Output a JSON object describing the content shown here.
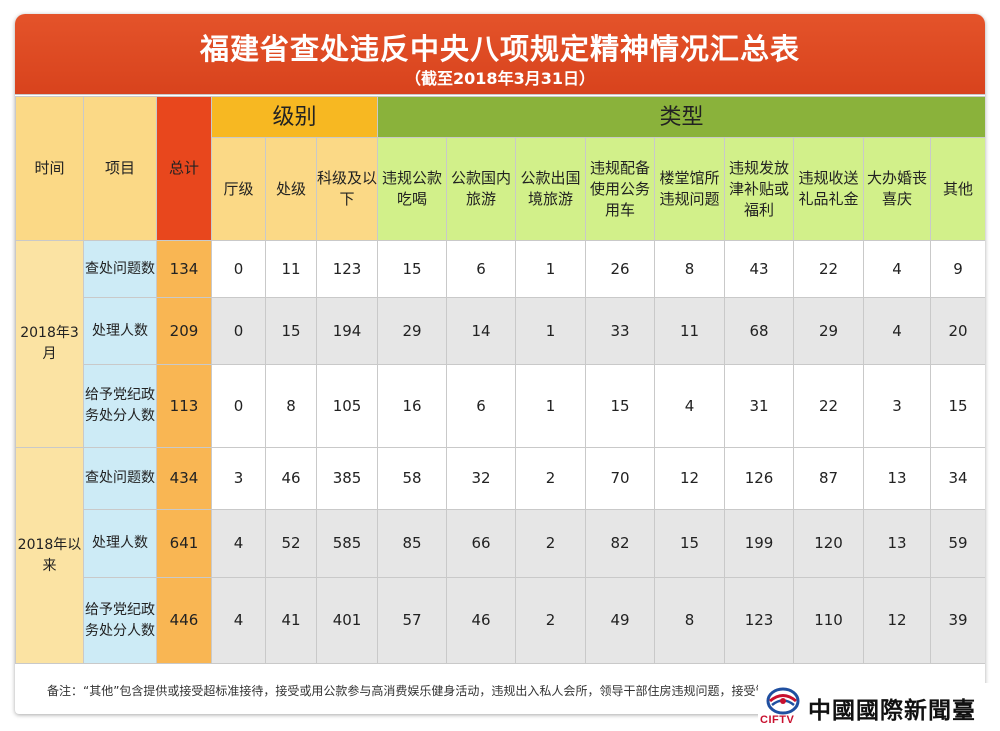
{
  "title": "福建省查处违反中央八项规定精神情况汇总表",
  "subtitle": "（截至2018年3月31日）",
  "headers": {
    "time": "时间",
    "project": "项目",
    "total": "总计",
    "level_group": "级别",
    "type_group": "类型",
    "levels": [
      "厅级",
      "处级",
      "科级及以下"
    ],
    "types": [
      "违规公款吃喝",
      "公款国内旅游",
      "公款出国境旅游",
      "违规配备使用公务用车",
      "楼堂馆所违规问题",
      "违规发放津补贴或福利",
      "违规收送礼品礼金",
      "大办婚丧喜庆",
      "其他"
    ]
  },
  "groups": [
    {
      "time": "2018年3月",
      "rows": [
        {
          "item": "查处问题数",
          "values": [
            "134",
            "0",
            "11",
            "123",
            "15",
            "6",
            "1",
            "26",
            "8",
            "43",
            "22",
            "4",
            "9"
          ]
        },
        {
          "item": "处理人数",
          "values": [
            "209",
            "0",
            "15",
            "194",
            "29",
            "14",
            "1",
            "33",
            "11",
            "68",
            "29",
            "4",
            "20"
          ]
        },
        {
          "item": "给予党纪政务处分人数",
          "values": [
            "113",
            "0",
            "8",
            "105",
            "16",
            "6",
            "1",
            "15",
            "4",
            "31",
            "22",
            "3",
            "15"
          ]
        }
      ]
    },
    {
      "time": "2018年以来",
      "rows": [
        {
          "item": "查处问题数",
          "values": [
            "434",
            "3",
            "46",
            "385",
            "58",
            "32",
            "2",
            "70",
            "12",
            "126",
            "87",
            "13",
            "34"
          ]
        },
        {
          "item": "处理人数",
          "values": [
            "641",
            "4",
            "52",
            "585",
            "85",
            "66",
            "2",
            "82",
            "15",
            "199",
            "120",
            "13",
            "59"
          ]
        },
        {
          "item": "给予党纪政务处分人数",
          "values": [
            "446",
            "4",
            "41",
            "401",
            "57",
            "46",
            "2",
            "49",
            "8",
            "123",
            "110",
            "12",
            "39"
          ]
        }
      ]
    }
  ],
  "note": "备注：“其他”包含提供或接受超标准接待，接受或用公款参与高消费娱乐健身活动，违规出入私人会所，领导干部住房违规问题，接受管理服务对象宴请",
  "logo": {
    "en": "CIFTV",
    "cn": "中國國際新聞臺",
    "icon": "cifttv-logo-icon"
  },
  "colors": {
    "title_bg": "#e4532a",
    "level_header": "#f7b822",
    "type_header": "#8ab23b",
    "type_sub": "#d2f08a",
    "total": "#e8471d"
  }
}
